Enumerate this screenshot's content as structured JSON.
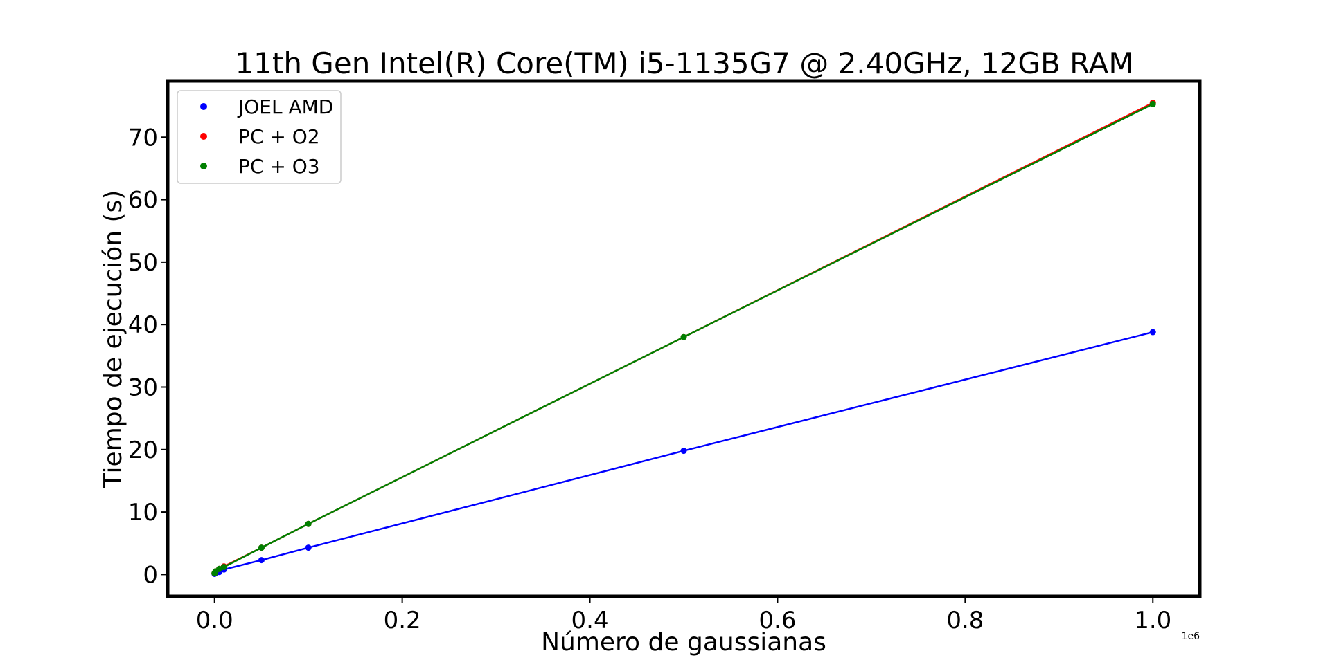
{
  "chart_data": {
    "type": "line",
    "title": "11th Gen Intel(R) Core(TM) i5-1135G7 @ 2.40GHz, 12GB RAM",
    "xlabel": "Número de gaussianas",
    "ylabel": "Tiempo de ejecución (s)",
    "x_offset_label": "1e6",
    "xlim": [
      -0.05,
      1.05
    ],
    "ylim": [
      -3.5,
      79
    ],
    "xticks": [
      0.0,
      0.2,
      0.4,
      0.6,
      0.8,
      1.0
    ],
    "xtick_labels": [
      "0.0",
      "0.2",
      "0.4",
      "0.6",
      "0.8",
      "1.0"
    ],
    "yticks": [
      0,
      10,
      20,
      30,
      40,
      50,
      60,
      70
    ],
    "ytick_labels": [
      "0",
      "10",
      "20",
      "30",
      "40",
      "50",
      "60",
      "70"
    ],
    "legend_position": "top-left",
    "x": [
      0.0,
      0.001,
      0.005,
      0.01,
      0.05,
      0.1,
      0.5,
      1.0
    ],
    "series": [
      {
        "name": "JOEL AMD",
        "color": "#0000ff",
        "values": [
          0.1,
          0.2,
          0.4,
          0.8,
          2.3,
          4.3,
          19.8,
          38.8
        ]
      },
      {
        "name": "PC + O2",
        "color": "#ff0000",
        "values": [
          0.2,
          0.5,
          0.9,
          1.3,
          4.3,
          8.1,
          38.0,
          75.5
        ]
      },
      {
        "name": "PC + O3",
        "color": "#008000",
        "values": [
          0.2,
          0.5,
          0.9,
          1.2,
          4.3,
          8.1,
          38.0,
          75.3
        ]
      }
    ]
  }
}
